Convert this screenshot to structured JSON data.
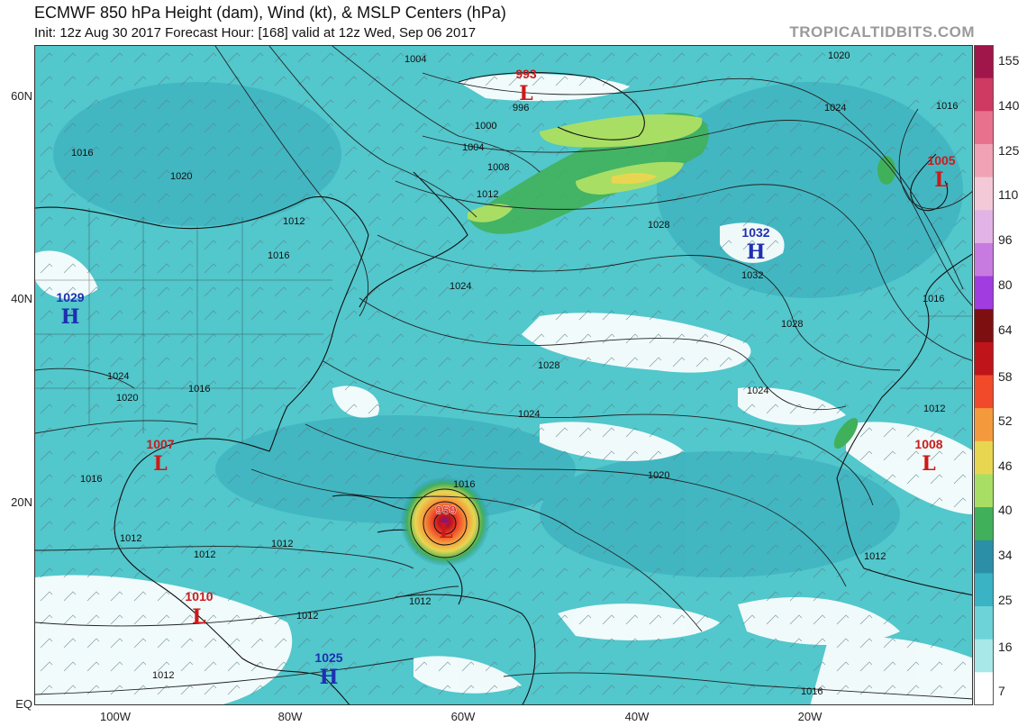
{
  "header": {
    "title": "ECMWF 850 hPa Height (dam), Wind (kt), & MSLP Centers (hPa)",
    "subtitle": "Init: 12z Aug 30 2017   Forecast Hour: [168]   valid at 12z Wed, Sep 06 2017",
    "brand": "TROPICALTIDBITS.COM"
  },
  "axes": {
    "latitudes": [
      "60N",
      "40N",
      "20N",
      "EQ"
    ],
    "longitudes": [
      "100W",
      "80W",
      "60W",
      "40W",
      "20W"
    ]
  },
  "colorbar": {
    "labels": [
      "155",
      "140",
      "125",
      "110",
      "96",
      "80",
      "64",
      "58",
      "52",
      "46",
      "40",
      "34",
      "25",
      "16",
      "7"
    ],
    "colors": [
      "#a0164a",
      "#cf3a62",
      "#e8728d",
      "#f1a2b4",
      "#f3c9d8",
      "#e2b3e6",
      "#c77be0",
      "#a03ce0",
      "#7d0f10",
      "#c0141b",
      "#f04a2a",
      "#f49a3c",
      "#e9d650",
      "#a9de64",
      "#41b05a",
      "#2a8fa7",
      "#3ab3c4",
      "#6dd3d8",
      "#a8e8e8",
      "#ffffff"
    ]
  },
  "pressure_centers": [
    {
      "type": "L",
      "value": "993",
      "color": "#cc1a1a"
    },
    {
      "type": "L",
      "value": "1005",
      "color": "#cc1a1a"
    },
    {
      "type": "H",
      "value": "1032",
      "color": "#1f2fb0"
    },
    {
      "type": "H",
      "value": "1029",
      "color": "#1f2fb0"
    },
    {
      "type": "L",
      "value": "1007",
      "color": "#cc1a1a"
    },
    {
      "type": "L",
      "value": "1008",
      "color": "#cc1a1a"
    },
    {
      "type": "L",
      "value": "959",
      "color": "#cc1a1a"
    },
    {
      "type": "L",
      "value": "1010",
      "color": "#cc1a1a"
    },
    {
      "type": "H",
      "value": "1025",
      "color": "#1f2fb0"
    }
  ],
  "isobar_labels": [
    "1004",
    "1020",
    "996",
    "1000",
    "1004",
    "1008",
    "1012",
    "1016",
    "1020",
    "1012",
    "1016",
    "1024",
    "1028",
    "1032",
    "1028",
    "1024",
    "1028",
    "1024",
    "1024",
    "1020",
    "1016",
    "1016",
    "1024",
    "1020",
    "1016",
    "1012",
    "1016",
    "1012",
    "1012",
    "1012",
    "1012",
    "1012",
    "1012",
    "1012",
    "1016",
    "1016"
  ]
}
